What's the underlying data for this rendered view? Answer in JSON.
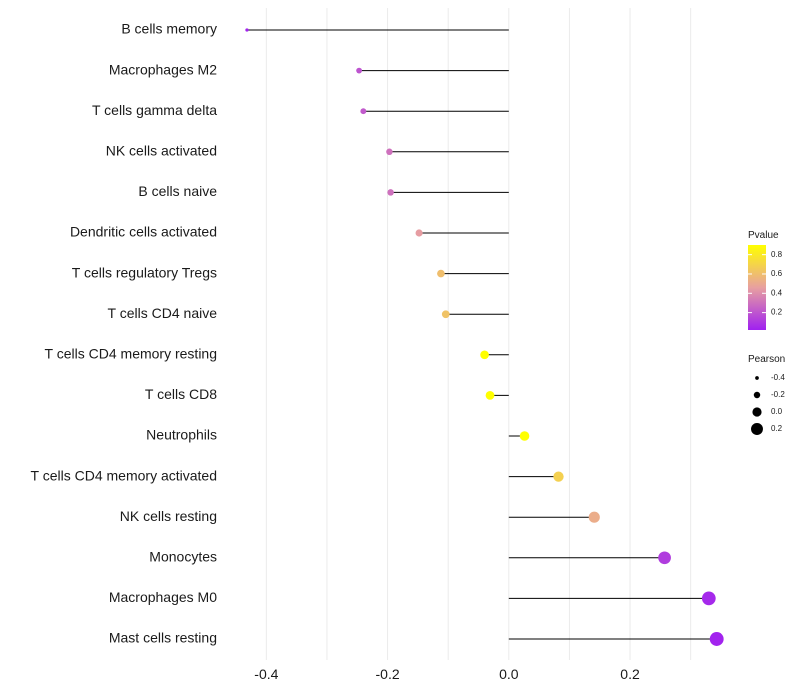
{
  "chart_data": {
    "type": "lollipop",
    "orientation": "horizontal",
    "title": "",
    "xlabel": "",
    "ylabel": "",
    "xlim": [
      -0.46,
      0.36
    ],
    "x_ticks": [
      -0.4,
      -0.2,
      0.0,
      0.2
    ],
    "x_tick_labels": [
      "-0.4",
      "-0.2",
      "0.0",
      "0.2"
    ],
    "grid": true,
    "categories": [
      "B cells memory",
      "Macrophages M2",
      "T cells gamma delta",
      "NK cells activated",
      "B cells naive",
      "Dendritic cells activated",
      "T cells regulatory  Tregs ",
      "T cells CD4 naive",
      "T cells CD4 memory resting",
      "T cells CD8",
      "Neutrophils",
      "T cells CD4 memory activated",
      "NK cells resting",
      "Monocytes",
      "Macrophages M0",
      "Mast cells resting"
    ],
    "pearson": [
      -0.432,
      -0.247,
      -0.24,
      -0.197,
      -0.195,
      -0.148,
      -0.112,
      -0.104,
      -0.04,
      -0.031,
      0.026,
      0.082,
      0.141,
      0.257,
      0.33,
      0.343
    ],
    "pvalue": [
      0.03,
      0.2,
      0.22,
      0.3,
      0.3,
      0.45,
      0.6,
      0.62,
      0.95,
      0.96,
      0.97,
      0.68,
      0.52,
      0.12,
      0.05,
      0.03
    ],
    "color_legend": {
      "title": "Pvalue",
      "ticks": [
        0.8,
        0.6,
        0.4,
        0.2
      ],
      "tick_labels": [
        "0.8",
        "0.6",
        "0.4",
        "0.2"
      ],
      "range": [
        0.02,
        0.9
      ],
      "colors": [
        "#a020f0",
        "#e8a0a0",
        "#ffff00"
      ]
    },
    "size_legend": {
      "title": "Pearson",
      "values": [
        -0.4,
        -0.2,
        0.0,
        0.2
      ],
      "labels": [
        "-0.4",
        "-0.2",
        "0.0",
        "0.2"
      ]
    }
  }
}
